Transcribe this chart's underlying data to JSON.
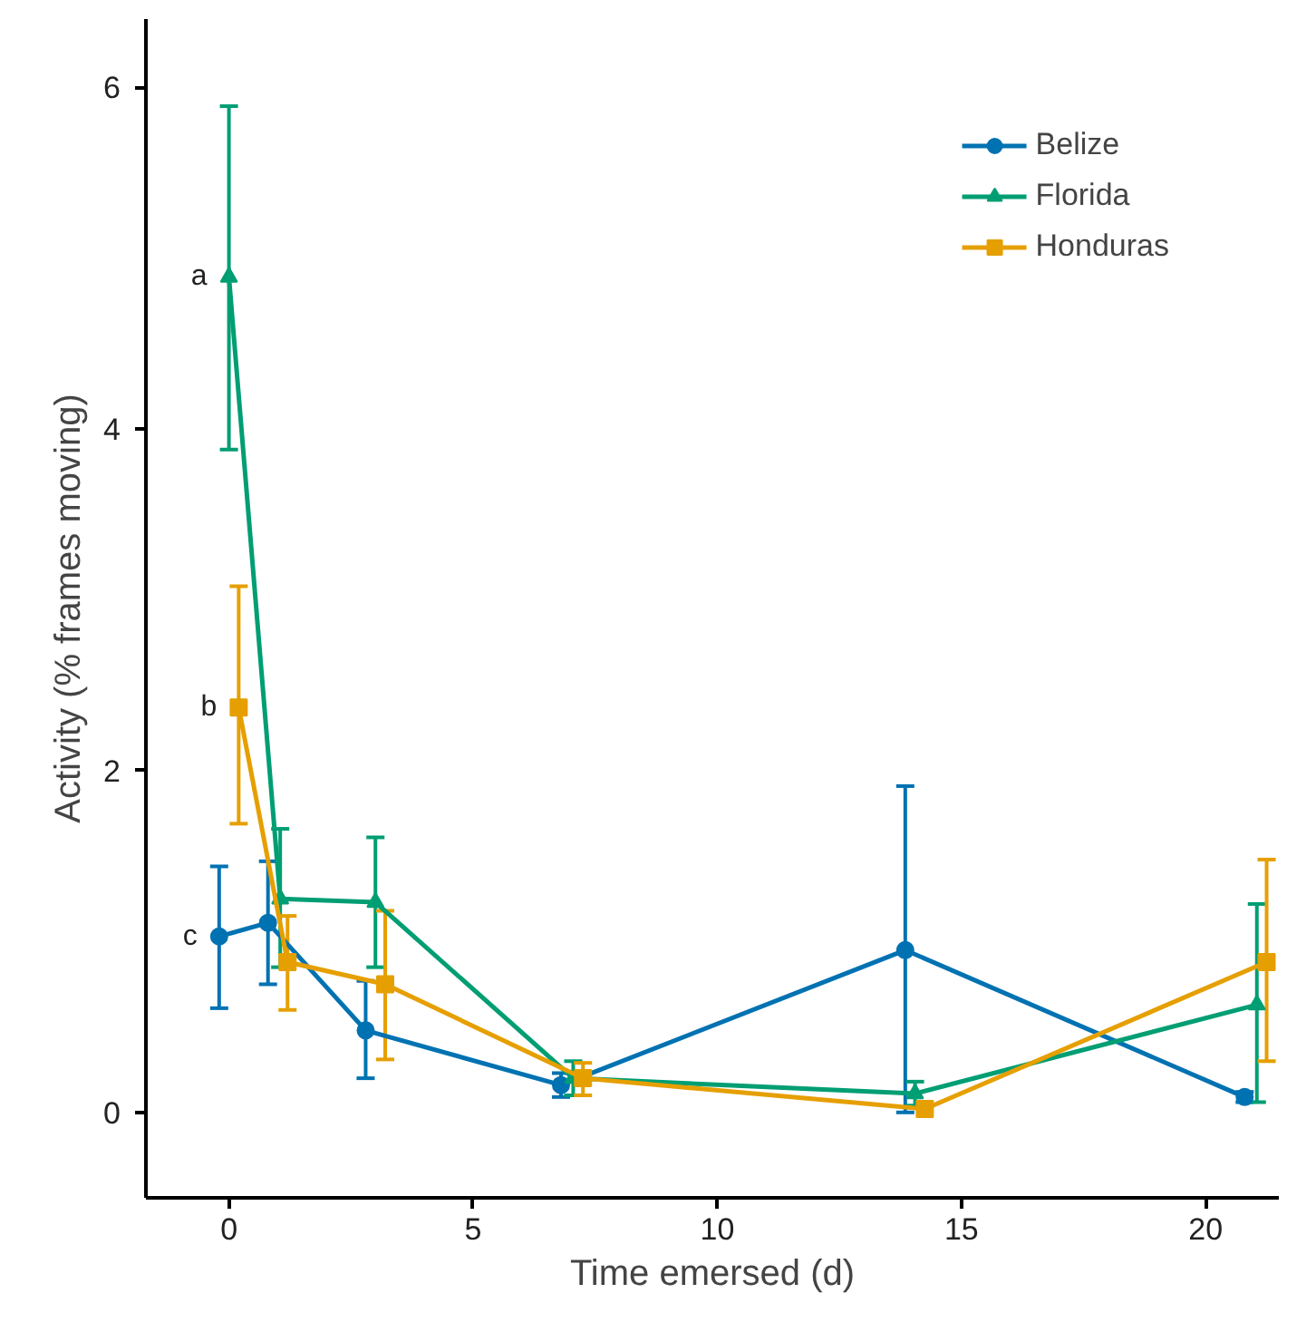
{
  "chart_data": {
    "type": "line",
    "xlabel": "Time emersed (d)",
    "ylabel": "Activity (% frames moving)",
    "xlim": [
      -1.7,
      21.5
    ],
    "ylim": [
      -0.5,
      6.4
    ],
    "xticks": [
      0,
      5,
      10,
      15,
      20
    ],
    "yticks": [
      0,
      2,
      4,
      6
    ],
    "grid": false,
    "legend": "top right",
    "line_style": "solid",
    "series": [
      {
        "name": "Belize",
        "color": "#0072b2",
        "marker": "circle",
        "x": [
          -0.2,
          0.8,
          2.8,
          6.8,
          13.85,
          20.8
        ],
        "values": [
          1.03,
          1.11,
          0.48,
          0.16,
          0.95,
          0.09
        ],
        "errors": [
          [
            0.61,
            1.44
          ],
          [
            0.75,
            1.47
          ],
          [
            0.2,
            0.77
          ],
          [
            0.09,
            0.23
          ],
          [
            0.0,
            1.91
          ],
          [
            0.06,
            0.12
          ]
        ]
      },
      {
        "name": "Florida",
        "color": "#009e73",
        "marker": "triangle",
        "x": [
          0,
          1.05,
          3.0,
          7.05,
          14.05,
          21.05
        ],
        "values": [
          4.89,
          1.25,
          1.23,
          0.2,
          0.11,
          0.63
        ],
        "errors": [
          [
            3.88,
            5.89
          ],
          [
            0.85,
            1.66
          ],
          [
            0.85,
            1.61
          ],
          [
            0.1,
            0.3
          ],
          [
            0.04,
            0.18
          ],
          [
            0.06,
            1.22
          ]
        ]
      },
      {
        "name": "Honduras",
        "color": "#e69f00",
        "marker": "square",
        "x": [
          0.2,
          1.2,
          3.2,
          7.25,
          14.25,
          21.25
        ],
        "values": [
          2.37,
          0.88,
          0.75,
          0.2,
          0.02,
          0.88
        ],
        "errors": [
          [
            1.69,
            3.08
          ],
          [
            0.6,
            1.15
          ],
          [
            0.31,
            1.18
          ],
          [
            0.1,
            0.29
          ],
          null,
          [
            0.3,
            1.48
          ]
        ]
      }
    ],
    "annotations": [
      {
        "text": "a",
        "x": 0,
        "y": 4.89
      },
      {
        "text": "b",
        "x": 0.2,
        "y": 2.37
      },
      {
        "text": "c",
        "x": -0.2,
        "y": 1.03
      }
    ]
  }
}
